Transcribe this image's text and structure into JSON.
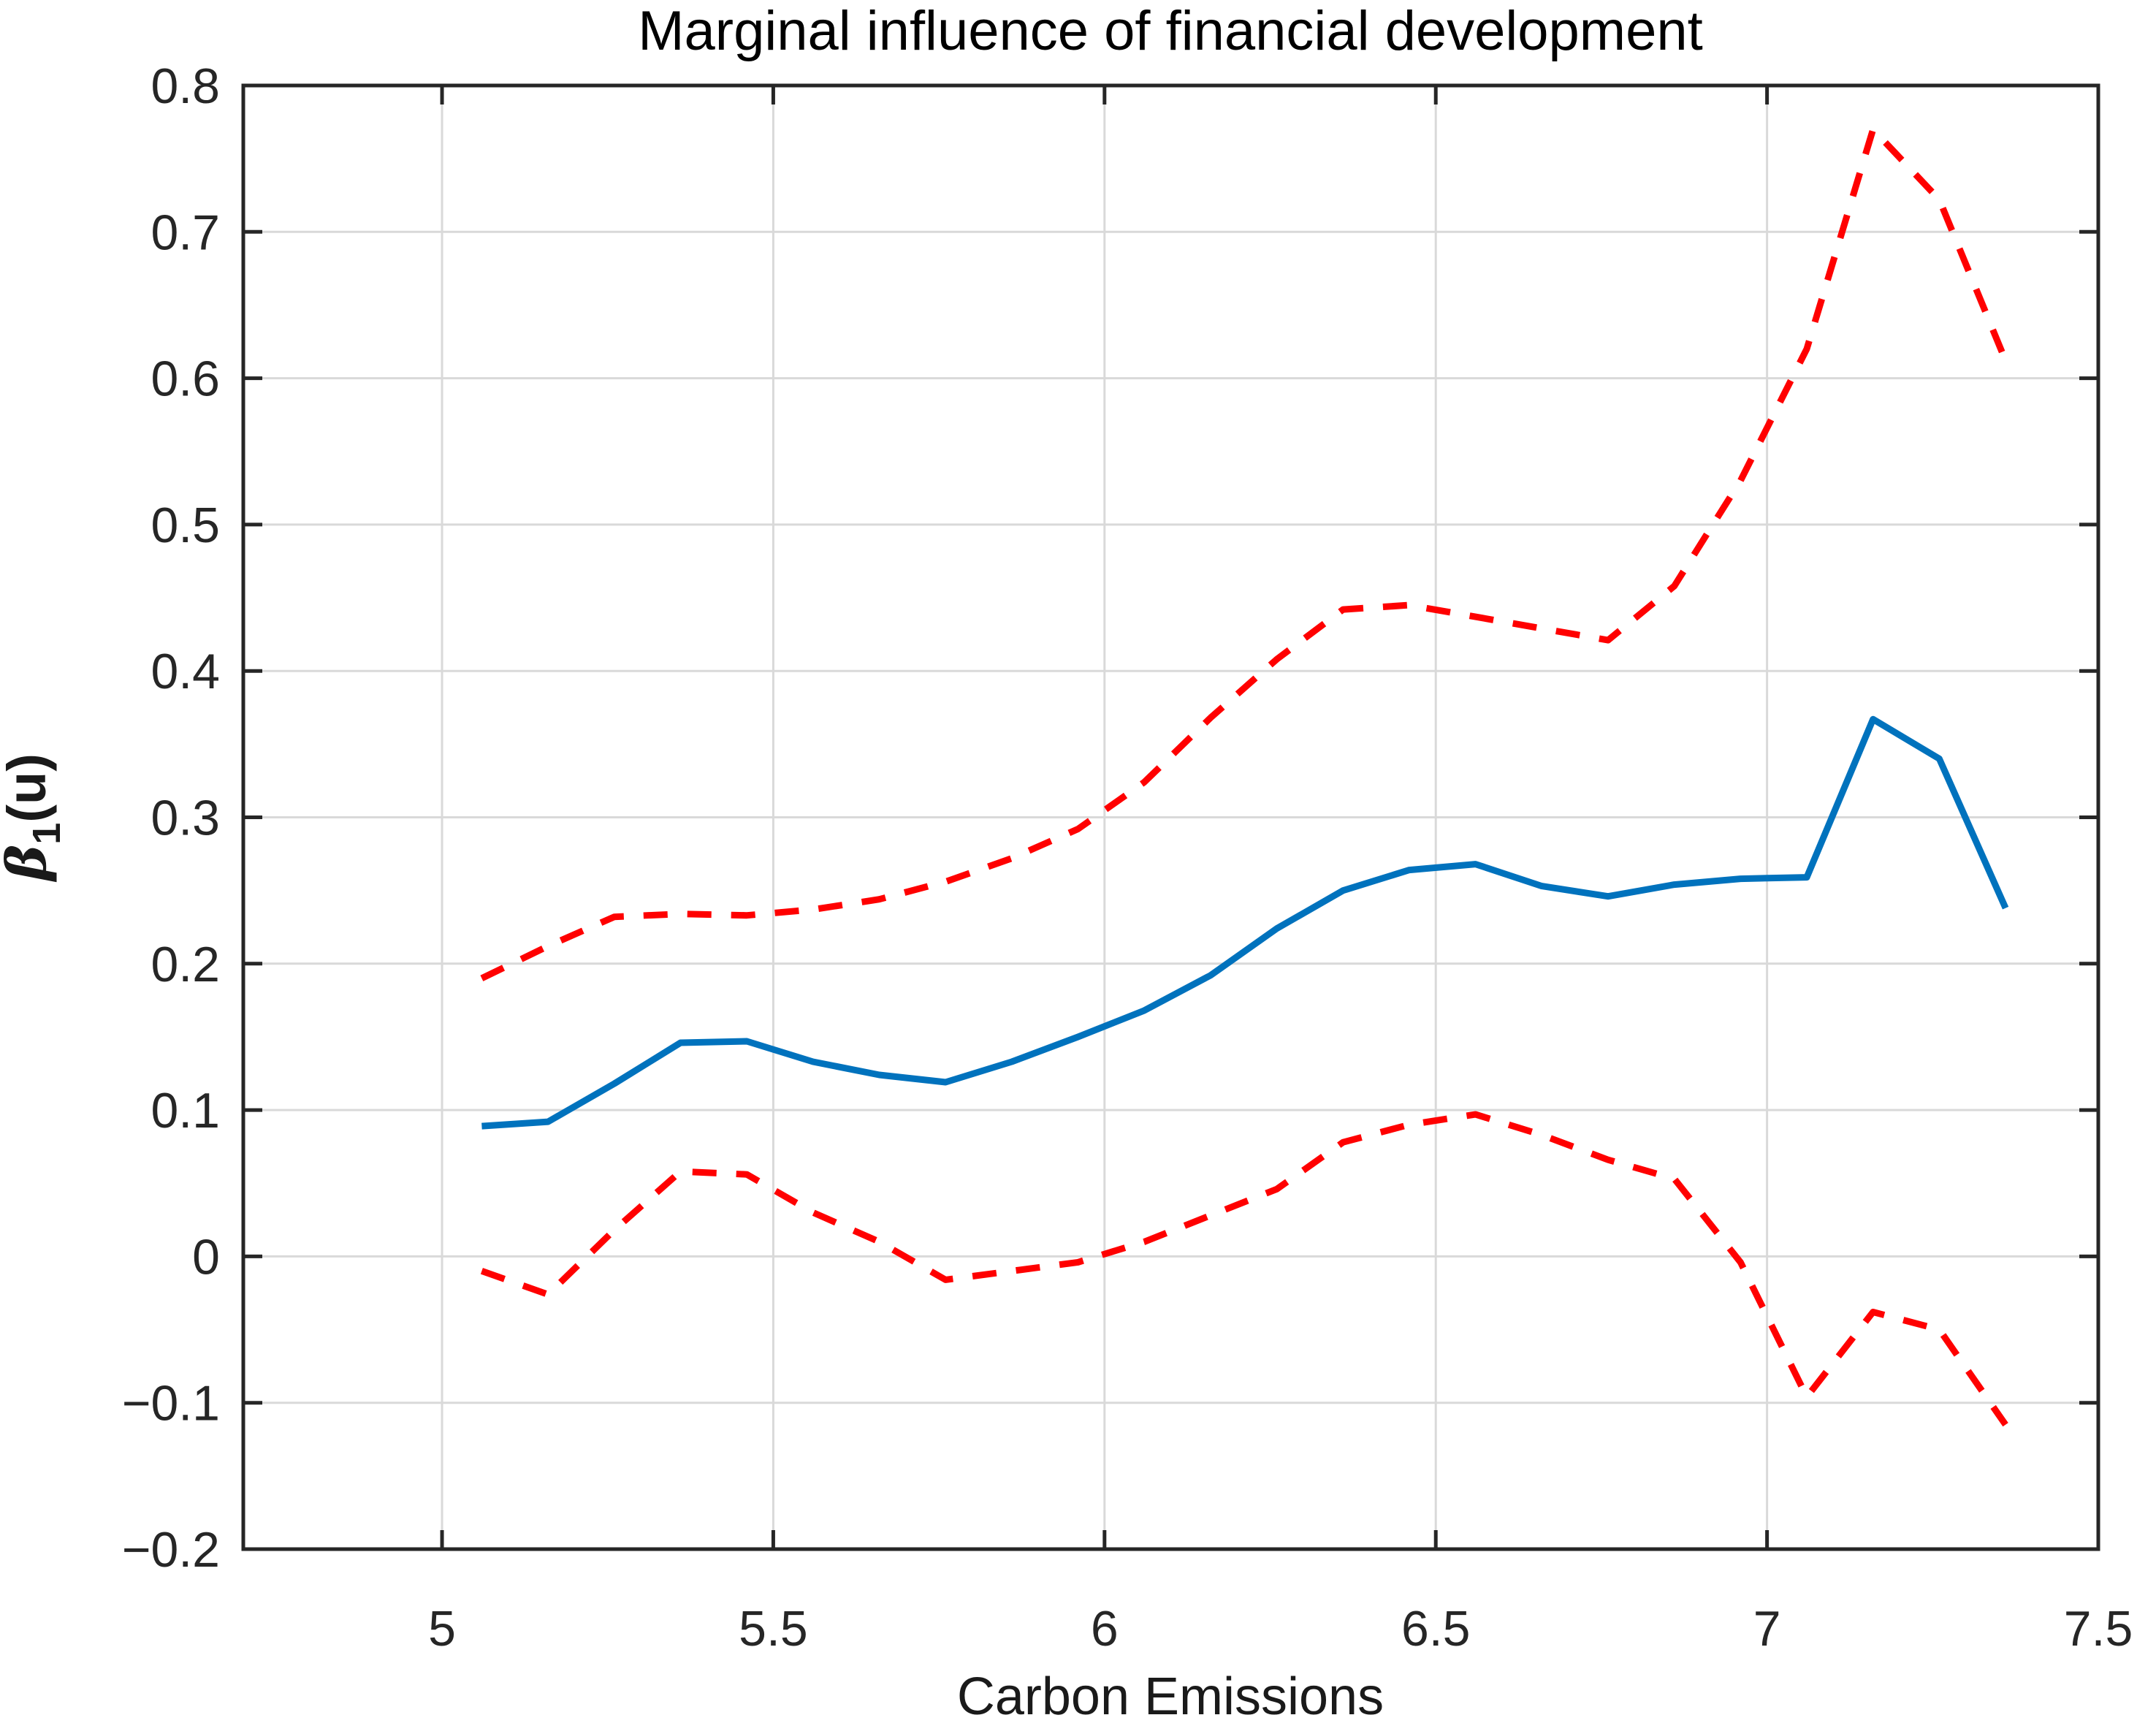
{
  "chart_data": {
    "type": "line",
    "title": "Marginal influence of financial development",
    "xlabel": "Carbon Emissions",
    "ylabel": {
      "beta": "β",
      "sub": "1",
      "rest": "(u)"
    },
    "xlim": [
      4.7,
      7.5
    ],
    "ylim": [
      -0.2,
      0.8
    ],
    "x_ticks": [
      5,
      5.5,
      6,
      6.5,
      7,
      7.5
    ],
    "y_ticks": [
      -0.2,
      -0.1,
      0,
      0.1,
      0.2,
      0.3,
      0.4,
      0.5,
      0.6,
      0.7,
      0.8
    ],
    "grid": true,
    "legend_position": "none",
    "colors": {
      "estimate": "#0072bd",
      "confidence_band": "#ff0000",
      "gridline": "#d9d9d9",
      "frame": "#262626"
    },
    "x": [
      5.06,
      5.16,
      5.26,
      5.36,
      5.46,
      5.56,
      5.66,
      5.76,
      5.86,
      5.96,
      6.06,
      6.16,
      6.26,
      6.36,
      6.46,
      6.56,
      6.66,
      6.76,
      6.86,
      6.96,
      7.06,
      7.16,
      7.26,
      7.36
    ],
    "series": [
      {
        "name": "estimate",
        "style": "solid",
        "color": "#0072bd",
        "values": [
          0.089,
          0.092,
          0.118,
          0.146,
          0.147,
          0.133,
          0.124,
          0.119,
          0.133,
          0.15,
          0.168,
          0.192,
          0.224,
          0.25,
          0.264,
          0.268,
          0.253,
          0.246,
          0.254,
          0.258,
          0.259,
          0.367,
          0.34,
          0.238
        ]
      },
      {
        "name": "upper-band",
        "style": "dashed",
        "color": "#ff0000",
        "values": [
          0.19,
          0.212,
          0.232,
          0.234,
          0.233,
          0.237,
          0.244,
          0.256,
          0.272,
          0.292,
          0.324,
          0.368,
          0.408,
          0.442,
          0.445,
          0.437,
          0.429,
          0.421,
          0.458,
          0.53,
          0.62,
          0.77,
          0.722,
          0.612
        ]
      },
      {
        "name": "lower-band",
        "style": "dashed",
        "color": "#ff0000",
        "values": [
          -0.01,
          -0.026,
          0.018,
          0.058,
          0.056,
          0.03,
          0.01,
          -0.016,
          -0.01,
          -0.004,
          0.01,
          0.028,
          0.046,
          0.078,
          0.09,
          0.097,
          0.083,
          0.066,
          0.053,
          -0.004,
          -0.096,
          -0.038,
          -0.05,
          -0.115
        ]
      }
    ]
  }
}
